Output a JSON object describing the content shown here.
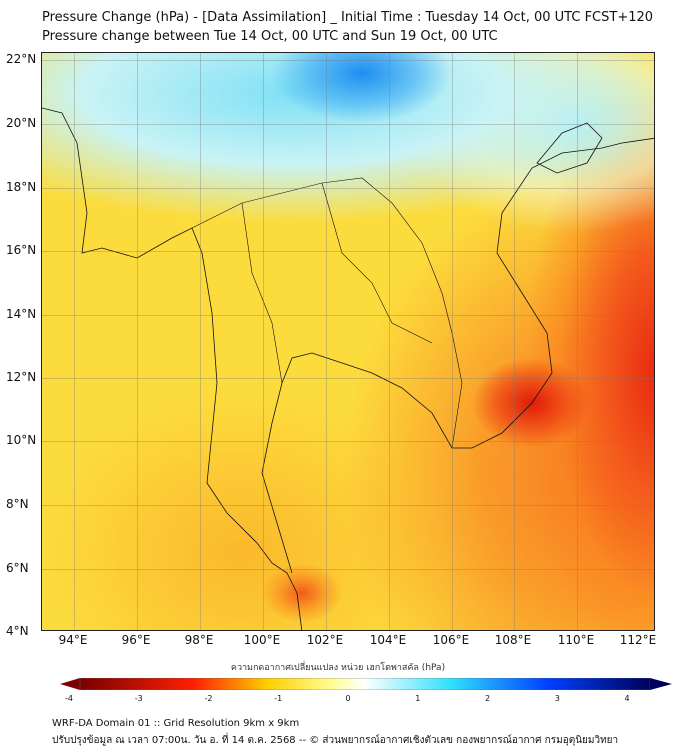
{
  "header": {
    "title": "Pressure Change (hPa) - [Data Assimilation] _ Initial Time : Tuesday 14 Oct, 00 UTC FCST+120",
    "subtitle": "Pressure change between Tue 14 Oct, 00 UTC and Sun 19 Oct, 00 UTC"
  },
  "map": {
    "lat_labels": [
      "22°N",
      "20°N",
      "18°N",
      "16°N",
      "14°N",
      "12°N",
      "10°N",
      "8°N",
      "6°N",
      "4°N"
    ],
    "lon_labels": [
      "94°E",
      "96°E",
      "98°E",
      "100°E",
      "102°E",
      "104°E",
      "106°E",
      "108°E",
      "110°E",
      "112°E"
    ],
    "extent": {
      "lon": [
        93,
        112.5
      ],
      "lat": [
        4,
        22.2
      ]
    }
  },
  "colorbar": {
    "label": "ความกดอากาศเปลี่ยนแปลง หน่วย เฮกโตพาสคัล (hPa)",
    "ticks": [
      "-4",
      "-3",
      "-2",
      "-1",
      "0",
      "1",
      "2",
      "3",
      "4"
    ],
    "range": [
      -4,
      4
    ],
    "colors": [
      "#7a0000",
      "#ff2000",
      "#ffd000",
      "#ffffa0",
      "#ffffff",
      "#30e0ff",
      "#0040ff",
      "#00005a"
    ]
  },
  "footer": {
    "line1": "WRF-DA Domain 01 :: Grid Resolution 9km x 9km",
    "line2": "ปรับปรุงข้อมูล ณ เวลา 07:00น. วัน อ. ที่ 14 ต.ค. 2568 -- © ส่วนพยากรณ์อากาศเชิงตัวเลข กองพยากรณ์อากาศ กรมอุตุนิยมวิทยา"
  }
}
